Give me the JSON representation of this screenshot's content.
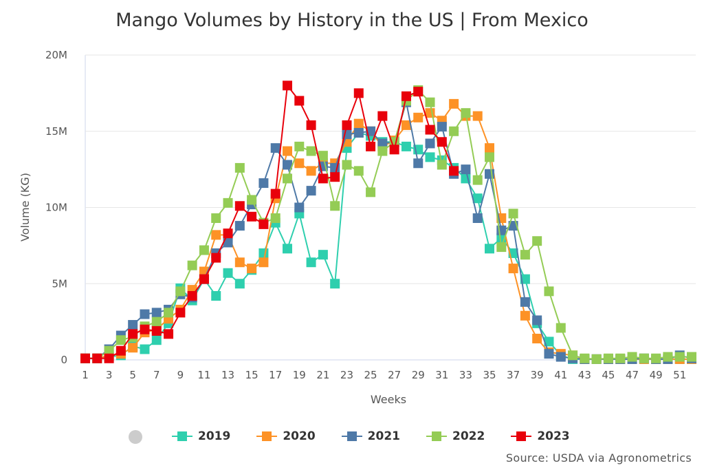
{
  "chart_data": {
    "type": "line",
    "title": "Mango Volumes by History in the US | From Mexico",
    "xlabel": "Weeks",
    "ylabel": "Volume (KG)",
    "xlim": [
      1,
      52
    ],
    "ylim": [
      0,
      20000000
    ],
    "x_ticks": [
      "1",
      "3",
      "5",
      "7",
      "9",
      "11",
      "13",
      "15",
      "17",
      "19",
      "21",
      "23",
      "25",
      "27",
      "29",
      "31",
      "33",
      "35",
      "37",
      "39",
      "41",
      "43",
      "45",
      "47",
      "49",
      "51"
    ],
    "y_ticks": [
      "0",
      "5M",
      "10M",
      "15M",
      "20M"
    ],
    "grid": "horizontal",
    "legend_position": "bottom",
    "source": "Source: USDA via Agronometrics",
    "series": [
      {
        "name": "2019",
        "color": "#2ecfae",
        "values_millions": [
          0.1,
          0.1,
          0.2,
          0.3,
          0.9,
          0.7,
          1.3,
          2.4,
          4.7,
          3.9,
          5.3,
          4.2,
          5.7,
          5.0,
          5.9,
          7.0,
          9.0,
          7.3,
          9.6,
          6.4,
          6.9,
          5.0,
          13.9,
          14.9,
          14.7,
          14.3,
          14.3,
          14.0,
          13.8,
          13.3,
          13.1,
          12.6,
          11.9,
          10.6,
          7.3,
          8.0,
          7.0,
          5.3,
          2.4,
          1.2,
          0.3,
          0.05,
          0.05,
          0.05,
          0.05,
          0.05,
          0.05,
          0.05,
          0.05,
          0.05,
          0.05,
          0.05
        ]
      },
      {
        "name": "2020",
        "color": "#fd9226",
        "values_millions": [
          0.1,
          0.1,
          0.3,
          0.4,
          0.8,
          1.8,
          2.0,
          2.7,
          3.3,
          4.6,
          5.8,
          8.2,
          8.2,
          6.4,
          6.0,
          6.4,
          10.6,
          13.7,
          12.9,
          12.4,
          12.9,
          12.9,
          14.3,
          15.5,
          15.0,
          14.0,
          14.4,
          15.4,
          15.9,
          16.2,
          15.7,
          16.8,
          16.0,
          16.0,
          13.9,
          9.3,
          6.0,
          2.9,
          1.4,
          0.5,
          0.4,
          0.3,
          0.05,
          0.05,
          0.05,
          0.05,
          0.05,
          0.05,
          0.05,
          0.05,
          0.05,
          0.05
        ]
      },
      {
        "name": "2021",
        "color": "#4e79a7",
        "values_millions": [
          0.1,
          0.1,
          0.7,
          1.6,
          2.3,
          3.0,
          3.1,
          3.3,
          4.3,
          4.1,
          5.3,
          7.0,
          7.7,
          8.8,
          10.2,
          11.6,
          13.9,
          12.8,
          10.0,
          11.1,
          12.7,
          12.6,
          14.8,
          14.9,
          15.0,
          14.2,
          14.3,
          16.9,
          12.9,
          14.2,
          15.3,
          12.2,
          12.5,
          9.3,
          12.2,
          8.5,
          8.8,
          3.8,
          2.6,
          0.4,
          0.2,
          0.1,
          0.05,
          0.05,
          0.05,
          0.05,
          0.05,
          0.1,
          0.05,
          0.05,
          0.3,
          0.1
        ]
      },
      {
        "name": "2022",
        "color": "#94cc55",
        "values_millions": [
          0.1,
          0.1,
          0.6,
          1.3,
          1.5,
          2.2,
          2.5,
          3.1,
          4.5,
          6.2,
          7.2,
          9.3,
          10.3,
          12.6,
          10.5,
          9.0,
          9.3,
          11.9,
          14.0,
          13.7,
          13.4,
          10.1,
          12.8,
          12.4,
          11.0,
          13.7,
          14.3,
          17.0,
          17.7,
          16.9,
          12.8,
          15.0,
          16.2,
          11.8,
          13.3,
          7.4,
          9.6,
          6.9,
          7.8,
          4.5,
          2.1,
          0.3,
          0.1,
          0.05,
          0.1,
          0.1,
          0.2,
          0.1,
          0.1,
          0.2,
          0.2,
          0.2
        ]
      },
      {
        "name": "2023",
        "color": "#e8000b",
        "values_millions": [
          0.1,
          0.1,
          0.1,
          0.6,
          1.7,
          2.0,
          1.9,
          1.7,
          3.1,
          4.2,
          5.3,
          6.7,
          8.3,
          10.1,
          9.4,
          8.9,
          10.9,
          18.0,
          17.0,
          15.4,
          11.9,
          12.0,
          15.4,
          17.5,
          14.0,
          16.0,
          13.8,
          17.3,
          17.6,
          15.1,
          14.3,
          12.4
        ]
      }
    ]
  }
}
